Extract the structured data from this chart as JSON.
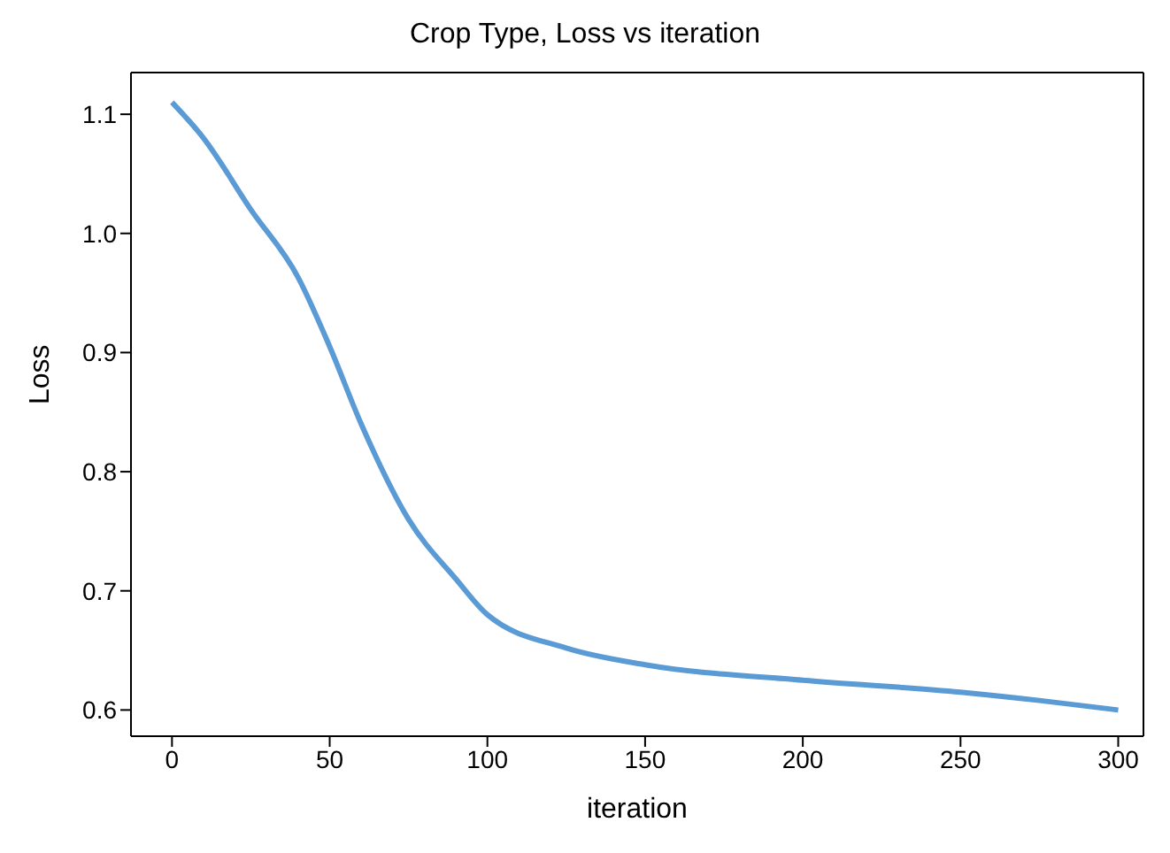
{
  "chart_data": {
    "type": "line",
    "title": "Crop Type, Loss vs iteration",
    "xlabel": "iteration",
    "ylabel": "Loss",
    "x": [
      0,
      10,
      25,
      40,
      50,
      60,
      75,
      90,
      100,
      125,
      150,
      200,
      250,
      275,
      300
    ],
    "series": [
      {
        "color": "#5b9bd5",
        "values": [
          1.11,
          1.08,
          1.02,
          0.963,
          0.905,
          0.84,
          0.76,
          0.71,
          0.68,
          0.652,
          0.638,
          0.625,
          0.615,
          0.608,
          0.6
        ]
      }
    ],
    "xlim": [
      -13,
      308
    ],
    "ylim": [
      0.578,
      1.135
    ],
    "xticks": [
      0,
      50,
      100,
      150,
      200,
      250,
      300
    ],
    "yticks": [
      0.6,
      0.7,
      0.8,
      0.9,
      {
        "value": 1,
        "label": "1.0"
      },
      1.1
    ],
    "grid": false,
    "legend": false,
    "marker": "none",
    "line_style": "solid"
  }
}
